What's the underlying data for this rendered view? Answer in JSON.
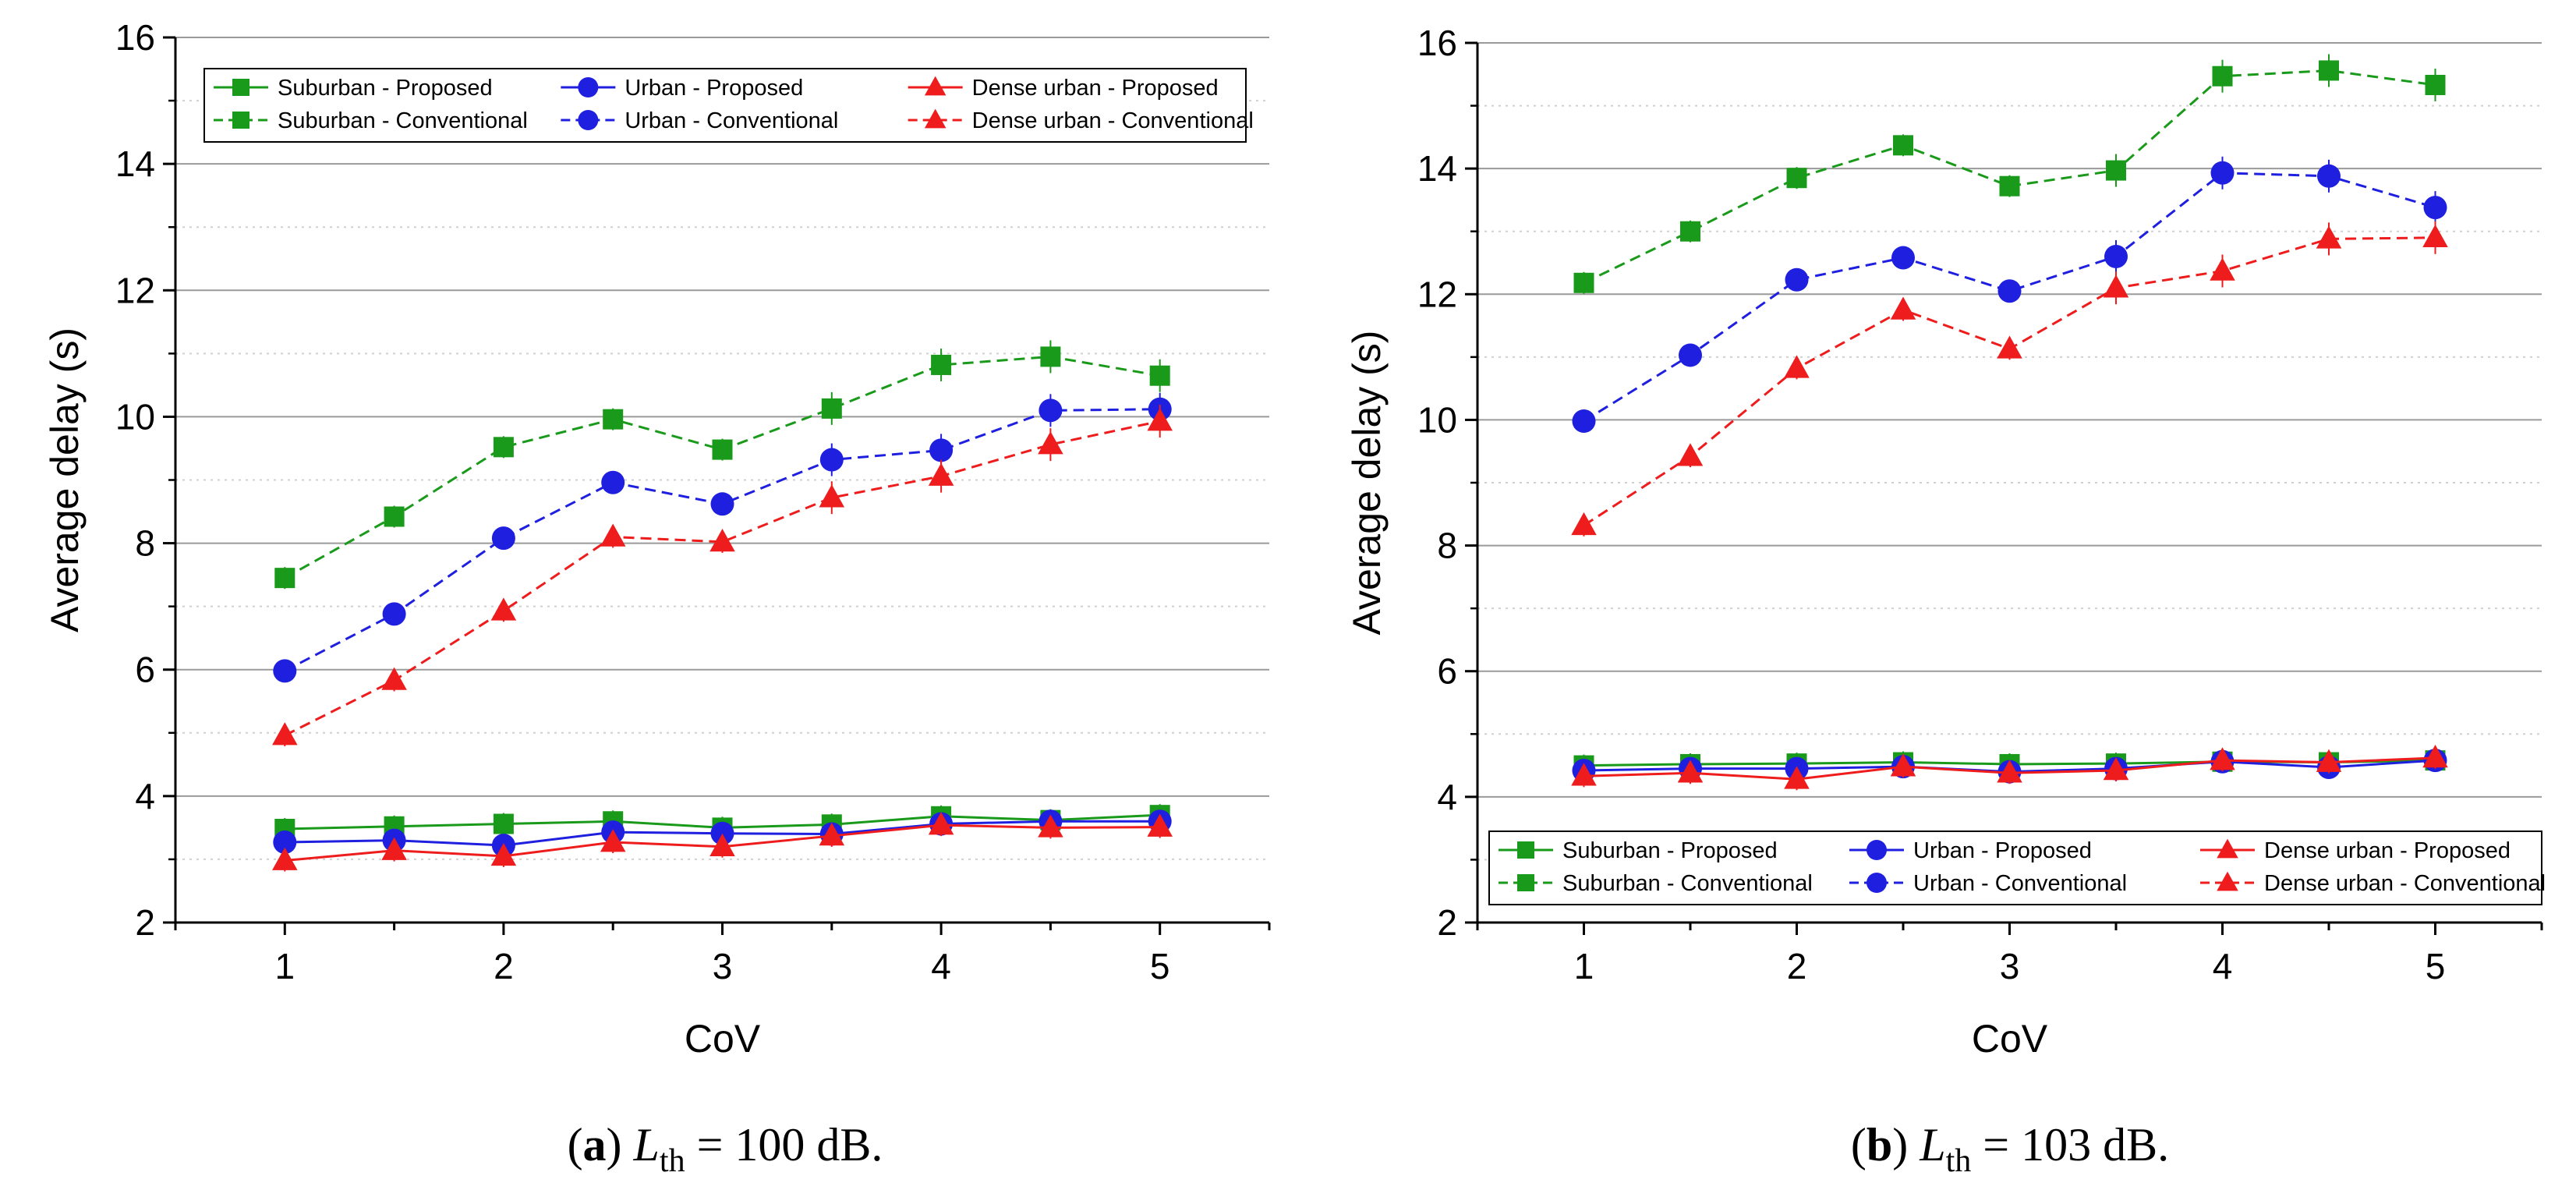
{
  "chart_data": [
    {
      "type": "line",
      "caption": {
        "letter": "(a)",
        "symbol": "L",
        "subscript": "th",
        "value": "= 100 dB."
      },
      "xlabel": "CoV",
      "ylabel": "Average delay (s)",
      "xlim": [
        0.5,
        5.5
      ],
      "ylim": [
        2,
        16
      ],
      "xticks": [
        "1",
        "2",
        "3",
        "4",
        "5"
      ],
      "yticks": [
        "2",
        "4",
        "6",
        "8",
        "10",
        "12",
        "14",
        "16"
      ],
      "grid": true,
      "legend": {
        "placement": "top-left"
      },
      "x": [
        1,
        1.5,
        2,
        2.5,
        3,
        3.5,
        4,
        4.5,
        5
      ],
      "series": [
        {
          "name": "Suburban - Proposed",
          "color": "#1a9a1a",
          "marker": "square",
          "dash": "solid",
          "values": [
            3.48,
            3.52,
            3.56,
            3.6,
            3.5,
            3.55,
            3.68,
            3.62,
            3.7
          ]
        },
        {
          "name": "Urban - Proposed",
          "color": "#1f1fe0",
          "marker": "circle",
          "dash": "solid",
          "values": [
            3.27,
            3.3,
            3.22,
            3.43,
            3.41,
            3.4,
            3.56,
            3.6,
            3.6
          ]
        },
        {
          "name": "Dense urban - Proposed",
          "color": "#ee1c1c",
          "marker": "triangle",
          "dash": "solid",
          "values": [
            2.98,
            3.14,
            3.05,
            3.27,
            3.2,
            3.37,
            3.54,
            3.5,
            3.51
          ]
        },
        {
          "name": "Suburban - Conventional",
          "color": "#1a9a1a",
          "marker": "square",
          "dash": "dashed",
          "values": [
            7.45,
            8.42,
            9.52,
            9.96,
            9.48,
            10.13,
            10.82,
            10.95,
            10.65
          ]
        },
        {
          "name": "Urban - Conventional",
          "color": "#1f1fe0",
          "marker": "circle",
          "dash": "dashed",
          "values": [
            5.98,
            6.88,
            8.08,
            8.96,
            8.62,
            9.32,
            9.47,
            10.1,
            10.12
          ]
        },
        {
          "name": "Dense urban - Conventional",
          "color": "#ee1c1c",
          "marker": "triangle",
          "dash": "dashed",
          "values": [
            4.96,
            5.83,
            6.93,
            8.1,
            8.02,
            8.72,
            9.06,
            9.56,
            9.93
          ]
        }
      ]
    },
    {
      "type": "line",
      "caption": {
        "letter": "(b)",
        "symbol": "L",
        "subscript": "th",
        "value": "= 103 dB."
      },
      "xlabel": "CoV",
      "ylabel": "Average delay (s)",
      "xlim": [
        0.5,
        5.5
      ],
      "ylim": [
        2,
        16
      ],
      "xticks": [
        "1",
        "2",
        "3",
        "4",
        "5"
      ],
      "yticks": [
        "2",
        "4",
        "6",
        "8",
        "10",
        "12",
        "14",
        "16"
      ],
      "grid": true,
      "legend": {
        "placement": "bottom-left"
      },
      "x": [
        1,
        1.5,
        2,
        2.5,
        3,
        3.5,
        4,
        4.5,
        5
      ],
      "series": [
        {
          "name": "Suburban - Proposed",
          "color": "#1a9a1a",
          "marker": "square",
          "dash": "solid",
          "values": [
            4.5,
            4.52,
            4.53,
            4.55,
            4.52,
            4.53,
            4.56,
            4.55,
            4.58
          ]
        },
        {
          "name": "Urban - Proposed",
          "color": "#1f1fe0",
          "marker": "circle",
          "dash": "solid",
          "values": [
            4.42,
            4.45,
            4.45,
            4.48,
            4.4,
            4.45,
            4.56,
            4.47,
            4.58
          ]
        },
        {
          "name": "Dense urban - Proposed",
          "color": "#ee1c1c",
          "marker": "triangle",
          "dash": "solid",
          "values": [
            4.33,
            4.38,
            4.28,
            4.48,
            4.38,
            4.42,
            4.58,
            4.55,
            4.62
          ]
        },
        {
          "name": "Suburban - Conventional",
          "color": "#1a9a1a",
          "marker": "square",
          "dash": "dashed",
          "values": [
            12.18,
            13.0,
            13.85,
            14.37,
            13.72,
            13.97,
            15.47,
            15.56,
            15.33
          ]
        },
        {
          "name": "Urban - Conventional",
          "color": "#1f1fe0",
          "marker": "circle",
          "dash": "dashed",
          "values": [
            9.98,
            11.03,
            12.23,
            12.58,
            12.05,
            12.6,
            13.93,
            13.88,
            13.38
          ]
        },
        {
          "name": "Dense urban - Conventional",
          "color": "#ee1c1c",
          "marker": "triangle",
          "dash": "dashed",
          "values": [
            8.32,
            9.42,
            10.82,
            11.75,
            11.13,
            12.1,
            12.37,
            12.88,
            12.9
          ]
        }
      ]
    }
  ]
}
